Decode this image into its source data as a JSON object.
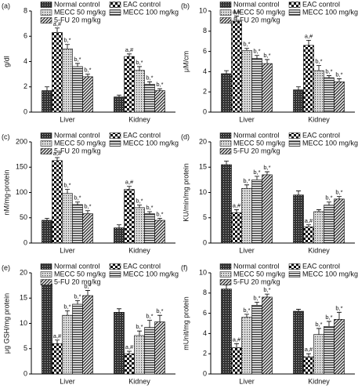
{
  "chart_data": [
    {
      "type": "bar",
      "panel": "(a)",
      "y_label": "g/dl",
      "categories": [
        "Liver",
        "Kidney"
      ],
      "ylim": [
        0,
        8
      ],
      "yticks": [
        0,
        2,
        4,
        6,
        8
      ],
      "series": [
        {
          "name": "Normal control",
          "values": [
            1.7,
            1.2
          ],
          "errors": [
            0.3,
            0.15
          ],
          "labels": [
            null,
            null
          ]
        },
        {
          "name": "EAC control",
          "values": [
            6.3,
            4.4
          ],
          "errors": [
            0.35,
            0.2
          ],
          "labels": [
            "a,#",
            "a,#"
          ]
        },
        {
          "name": "MECC 50 mg/kg",
          "values": [
            5.0,
            3.3
          ],
          "errors": [
            0.35,
            0.3
          ],
          "labels": [
            "b,*",
            "b,*"
          ]
        },
        {
          "name": "MECC 100 mg/kg",
          "values": [
            3.6,
            2.2
          ],
          "errors": [
            0.25,
            0.2
          ],
          "labels": [
            "b,*",
            "b,*"
          ]
        },
        {
          "name": "5-FU 20 mg/kg",
          "values": [
            2.8,
            1.7
          ],
          "errors": [
            0.2,
            0.15
          ],
          "labels": [
            "b,*",
            "b,*"
          ]
        }
      ]
    },
    {
      "type": "bar",
      "panel": "(b)",
      "y_label": "μM/cm",
      "categories": [
        "Liver",
        "Kidney"
      ],
      "ylim": [
        0,
        10
      ],
      "yticks": [
        0,
        2,
        4,
        6,
        8,
        10
      ],
      "series": [
        {
          "name": "Normal control",
          "values": [
            3.8,
            2.2
          ],
          "errors": [
            0.3,
            0.3
          ],
          "labels": [
            null,
            null
          ]
        },
        {
          "name": "EAC control",
          "values": [
            9.0,
            6.6
          ],
          "errors": [
            0.5,
            0.5
          ],
          "labels": [
            "a,#",
            "a,#"
          ]
        },
        {
          "name": "MECC 50 mg/kg",
          "values": [
            6.1,
            4.1
          ],
          "errors": [
            0.2,
            0.5
          ],
          "labels": [
            "b,*",
            "b,*"
          ]
        },
        {
          "name": "MECC 100 mg/kg",
          "values": [
            5.3,
            3.4
          ],
          "errors": [
            0.3,
            0.2
          ],
          "labels": [
            "b,*",
            "b,*"
          ]
        },
        {
          "name": "5-FU 20 mg/kg",
          "values": [
            4.8,
            3.0
          ],
          "errors": [
            0.4,
            0.3
          ],
          "labels": [
            "b,*",
            "b,*"
          ]
        }
      ]
    },
    {
      "type": "bar",
      "panel": "(c)",
      "y_label": "nM/mg-protein",
      "categories": [
        "Liver",
        "Kidney"
      ],
      "ylim": [
        0,
        200
      ],
      "yticks": [
        0,
        50,
        100,
        150,
        200
      ],
      "series": [
        {
          "name": "Normal control",
          "values": [
            45,
            30
          ],
          "errors": [
            4,
            6
          ],
          "labels": [
            null,
            null
          ]
        },
        {
          "name": "EAC control",
          "values": [
            163,
            106
          ],
          "errors": [
            6,
            6
          ],
          "labels": [
            "a,#",
            "a,#"
          ]
        },
        {
          "name": "MECC 50 mg/kg",
          "values": [
            98,
            70
          ],
          "errors": [
            8,
            5
          ],
          "labels": [
            "b,*",
            "b,*"
          ]
        },
        {
          "name": "MECC 100 mg/kg",
          "values": [
            76,
            58
          ],
          "errors": [
            5,
            4
          ],
          "labels": [
            "b,*",
            "b,*"
          ]
        },
        {
          "name": "5-FU 20 mg/kg",
          "values": [
            58,
            45
          ],
          "errors": [
            6,
            4
          ],
          "labels": [
            "b,*",
            "b,*"
          ]
        }
      ]
    },
    {
      "type": "bar",
      "panel": "(d)",
      "y_label": "KU/min/mg protein",
      "categories": [
        "Liver",
        "Kidney"
      ],
      "ylim": [
        0,
        20
      ],
      "yticks": [
        0,
        5,
        10,
        15,
        20
      ],
      "series": [
        {
          "name": "Normal control",
          "values": [
            15.5,
            9.5
          ],
          "errors": [
            0.7,
            0.8
          ],
          "labels": [
            null,
            null
          ]
        },
        {
          "name": "EAC control",
          "values": [
            6.0,
            3.2
          ],
          "errors": [
            0.6,
            0.4
          ],
          "labels": [
            "a,#",
            "a,#"
          ]
        },
        {
          "name": "MECC 50 mg/kg",
          "values": [
            10.8,
            6.2
          ],
          "errors": [
            0.7,
            0.4
          ],
          "labels": [
            "b,*",
            null
          ]
        },
        {
          "name": "MECC 100 mg/kg",
          "values": [
            12.5,
            7.5
          ],
          "errors": [
            0.7,
            0.6
          ],
          "labels": [
            "b,*",
            "b,*"
          ]
        },
        {
          "name": "5-FU 20 mg/kg",
          "values": [
            13.5,
            8.7
          ],
          "errors": [
            0.6,
            0.5
          ],
          "labels": [
            "b,*",
            "b,*"
          ]
        }
      ]
    },
    {
      "type": "bar",
      "panel": "(e)",
      "y_label": "μg GSH/mg protein",
      "categories": [
        "Liver",
        "Kidney"
      ],
      "ylim": [
        0,
        20
      ],
      "yticks": [
        0,
        5,
        10,
        15,
        20
      ],
      "series": [
        {
          "name": "Normal control",
          "values": [
            17.8,
            12.2
          ],
          "errors": [
            0.7,
            0.7
          ],
          "labels": [
            null,
            null
          ]
        },
        {
          "name": "EAC control",
          "values": [
            6.0,
            4.0
          ],
          "errors": [
            0.7,
            0.5
          ],
          "labels": [
            "a,#",
            "a,#"
          ]
        },
        {
          "name": "MECC 50 mg/kg",
          "values": [
            11.6,
            7.6
          ],
          "errors": [
            0.9,
            0.9
          ],
          "labels": [
            "b,*",
            "b,*"
          ]
        },
        {
          "name": "MECC 100 mg/kg",
          "values": [
            13.8,
            9.2
          ],
          "errors": [
            0.7,
            1.4
          ],
          "labels": [
            "b,*",
            "b,*"
          ]
        },
        {
          "name": "5-FU 20 mg/kg",
          "values": [
            15.5,
            10.3
          ],
          "errors": [
            1.0,
            1.3
          ],
          "labels": [
            "b,*",
            "b,*"
          ]
        }
      ]
    },
    {
      "type": "bar",
      "panel": "(f)",
      "y_label": "mUnit/mg protein",
      "categories": [
        "Liver",
        "Kidney"
      ],
      "ylim": [
        0,
        10
      ],
      "yticks": [
        0,
        2,
        4,
        6,
        8,
        10
      ],
      "series": [
        {
          "name": "Normal control",
          "values": [
            8.4,
            6.2
          ],
          "errors": [
            0.4,
            0.2
          ],
          "labels": [
            null,
            null
          ]
        },
        {
          "name": "EAC control",
          "values": [
            2.6,
            1.7
          ],
          "errors": [
            0.4,
            0.3
          ],
          "labels": [
            "a,#",
            "a,#"
          ]
        },
        {
          "name": "MECC 50 mg/kg",
          "values": [
            5.6,
            3.9
          ],
          "errors": [
            0.3,
            0.6
          ],
          "labels": [
            "b,*",
            "b,*"
          ]
        },
        {
          "name": "MECC 100 mg/kg",
          "values": [
            6.8,
            4.7
          ],
          "errors": [
            0.3,
            0.5
          ],
          "labels": [
            "b,*",
            "b,*"
          ]
        },
        {
          "name": "5-FU 20 mg/kg",
          "values": [
            7.6,
            5.4
          ],
          "errors": [
            0.3,
            0.7
          ],
          "labels": [
            "b,*",
            "b,*"
          ]
        }
      ]
    }
  ]
}
